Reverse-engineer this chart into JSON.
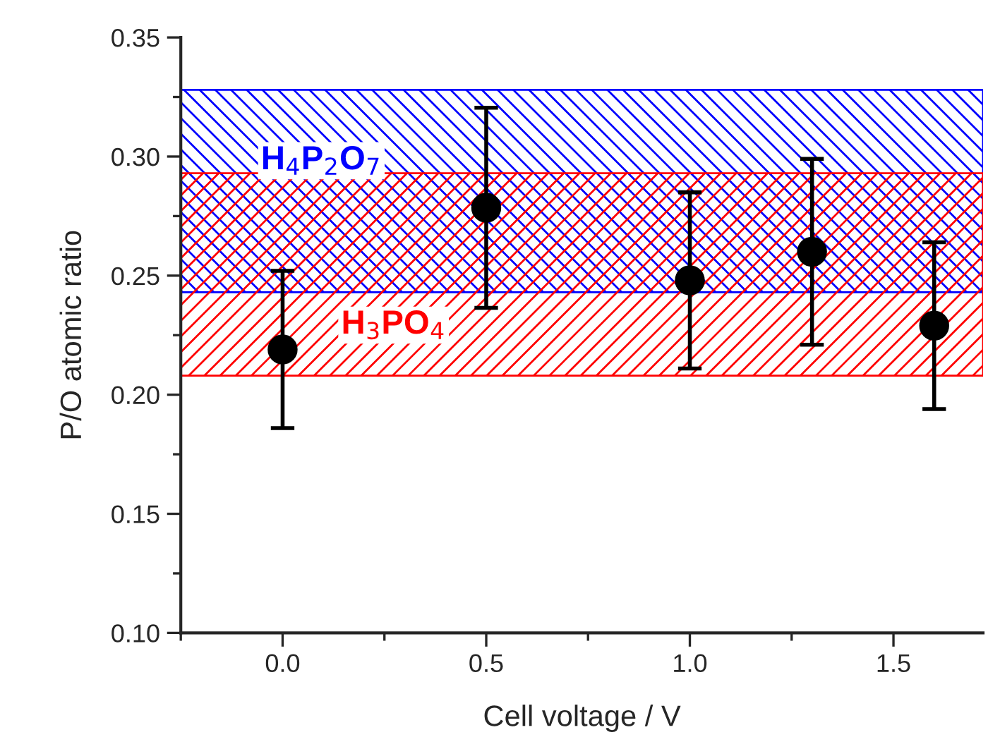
{
  "chart_data": {
    "type": "scatter",
    "xlabel": "Cell voltage / V",
    "ylabel": "P/O atomic ratio",
    "x": [
      0.0,
      0.5,
      1.0,
      1.3,
      1.6
    ],
    "series": [
      {
        "color": "#000000",
        "values": [
          0.219,
          0.2785,
          0.248,
          0.26,
          0.229
        ],
        "errors": [
          0.033,
          0.042,
          0.037,
          0.039,
          0.035
        ]
      }
    ],
    "xlim": [
      -0.25,
      1.72
    ],
    "xticks": [
      {
        "value": 0,
        "label": "0.0"
      },
      0.5,
      {
        "value": 1,
        "label": "1.0"
      },
      1.5
    ],
    "ylim": [
      0.1,
      0.35
    ],
    "yticks": [
      {
        "value": 0.1,
        "label": "0.10"
      },
      0.15,
      {
        "value": 0.2,
        "label": "0.20"
      },
      0.25,
      {
        "value": 0.3,
        "label": "0.30"
      },
      0.35
    ],
    "bands": [
      {
        "axis": "y",
        "from": 0.243,
        "to": 0.328,
        "label": "H$_{4}$P$_{2}$O$_{7}$",
        "color": "#0000ff"
      },
      {
        "axis": "y",
        "from": 0.208,
        "to": 0.293,
        "label": "H$_{3}$PO$_{4}$",
        "color": "#ff0000"
      }
    ],
    "marker": "circle",
    "grid": false,
    "legend": false
  }
}
